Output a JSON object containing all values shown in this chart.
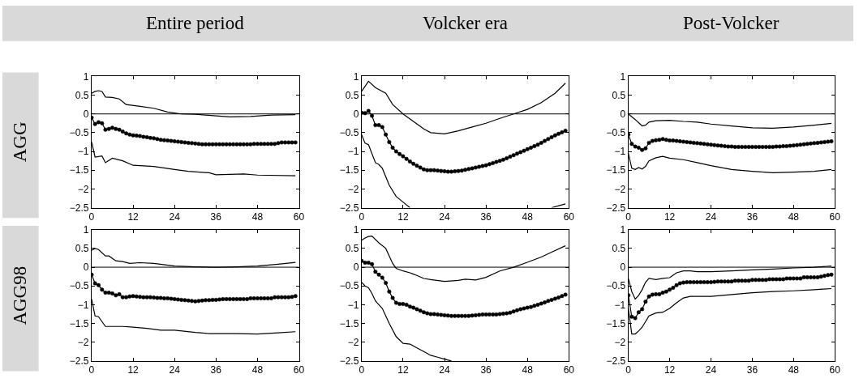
{
  "chart_data": [
    {
      "type": "line",
      "title": "Entire period",
      "ylabel": "AGG",
      "x": [
        0,
        1,
        2,
        3,
        4,
        5,
        6,
        7,
        8,
        9,
        10,
        11,
        12,
        13,
        14,
        15,
        16,
        17,
        18,
        19,
        20,
        21,
        22,
        23,
        24,
        25,
        26,
        27,
        28,
        29,
        30,
        31,
        32,
        33,
        34,
        35,
        36,
        37,
        38,
        39,
        40,
        41,
        42,
        43,
        44,
        45,
        46,
        47,
        48,
        49,
        50,
        51,
        52,
        53,
        54,
        55,
        56,
        57,
        58,
        59
      ],
      "xlim": [
        0,
        60
      ],
      "xticks": [
        0,
        12,
        24,
        36,
        48,
        60
      ],
      "ylim": [
        -2.5,
        1
      ],
      "yticks": [
        {
          "value": -2.5,
          "label": "−2.5"
        },
        {
          "value": -2,
          "label": "−2"
        },
        {
          "value": -1.5,
          "label": "−1.5"
        },
        {
          "value": -1,
          "label": "−1"
        },
        {
          "value": -0.5,
          "label": "−0.5"
        },
        0,
        0.5,
        1
      ],
      "ref_lines": [
        {
          "axis": "y",
          "value": 0,
          "color": "#000000"
        }
      ],
      "series": [
        {
          "color": "#000000",
          "marker": "circle",
          "values": [
            -0.1,
            -0.27,
            -0.22,
            -0.25,
            -0.42,
            -0.4,
            -0.37,
            -0.4,
            -0.42,
            -0.47,
            -0.52,
            -0.55,
            -0.57,
            -0.58,
            -0.59,
            -0.61,
            -0.62,
            -0.64,
            -0.65,
            -0.67,
            -0.69,
            -0.7,
            -0.71,
            -0.72,
            -0.73,
            -0.74,
            -0.75,
            -0.76,
            -0.77,
            -0.78,
            -0.79,
            -0.8,
            -0.81,
            -0.81,
            -0.81,
            -0.81,
            -0.81,
            -0.81,
            -0.81,
            -0.81,
            -0.81,
            -0.81,
            -0.81,
            -0.81,
            -0.81,
            -0.81,
            -0.81,
            -0.8,
            -0.8,
            -0.8,
            -0.8,
            -0.8,
            -0.8,
            -0.8,
            -0.78,
            -0.76,
            -0.76,
            -0.76,
            -0.76,
            -0.76
          ]
        },
        {
          "color": "#000000",
          "marker": "none",
          "x": [
            0,
            1,
            2,
            3,
            4,
            6,
            8,
            10,
            14,
            18,
            22,
            26,
            30,
            36,
            40,
            46,
            52,
            59
          ],
          "values": [
            0.55,
            0.6,
            0.62,
            0.6,
            0.45,
            0.44,
            0.4,
            0.25,
            0.2,
            0.15,
            0.05,
            0.0,
            -0.01,
            -0.05,
            -0.08,
            -0.07,
            -0.03,
            -0.02
          ]
        },
        {
          "color": "#000000",
          "marker": "none",
          "x": [
            0,
            1,
            3,
            4,
            6,
            9,
            12,
            18,
            24,
            28,
            34,
            36,
            44,
            48,
            59
          ],
          "values": [
            -0.75,
            -1.15,
            -1.12,
            -1.3,
            -1.18,
            -1.25,
            -1.37,
            -1.4,
            -1.48,
            -1.53,
            -1.57,
            -1.62,
            -1.6,
            -1.63,
            -1.65
          ]
        }
      ]
    },
    {
      "type": "line",
      "title": "Volcker era",
      "x": [
        0,
        1,
        2,
        3,
        4,
        5,
        6,
        7,
        8,
        9,
        10,
        11,
        12,
        13,
        14,
        15,
        16,
        17,
        18,
        19,
        20,
        21,
        22,
        23,
        24,
        25,
        26,
        27,
        28,
        29,
        30,
        31,
        32,
        33,
        34,
        35,
        36,
        37,
        38,
        39,
        40,
        41,
        42,
        43,
        44,
        45,
        46,
        47,
        48,
        49,
        50,
        51,
        52,
        53,
        54,
        55,
        56,
        57,
        58,
        59
      ],
      "xlim": [
        0,
        60
      ],
      "xticks": [
        0,
        12,
        24,
        36,
        48,
        60
      ],
      "ylim": [
        -2.5,
        1
      ],
      "yticks": [
        {
          "value": -2.5,
          "label": "−2.5"
        },
        {
          "value": -2,
          "label": "−2"
        },
        {
          "value": -1.5,
          "label": "−1.5"
        },
        {
          "value": -1,
          "label": "−1"
        },
        {
          "value": -0.5,
          "label": "−0.5"
        },
        0,
        0.5,
        1
      ],
      "ref_lines": [
        {
          "axis": "y",
          "value": 0,
          "color": "#000000"
        }
      ],
      "series": [
        {
          "color": "#000000",
          "marker": "circle",
          "values": [
            0.03,
            0.02,
            0.08,
            -0.05,
            -0.3,
            -0.3,
            -0.35,
            -0.55,
            -0.75,
            -0.9,
            -1.0,
            -1.07,
            -1.13,
            -1.2,
            -1.27,
            -1.33,
            -1.38,
            -1.43,
            -1.48,
            -1.5,
            -1.5,
            -1.5,
            -1.51,
            -1.52,
            -1.53,
            -1.54,
            -1.54,
            -1.53,
            -1.52,
            -1.51,
            -1.49,
            -1.47,
            -1.45,
            -1.43,
            -1.41,
            -1.39,
            -1.37,
            -1.34,
            -1.31,
            -1.28,
            -1.25,
            -1.22,
            -1.18,
            -1.14,
            -1.1,
            -1.06,
            -1.02,
            -0.98,
            -0.94,
            -0.9,
            -0.86,
            -0.82,
            -0.77,
            -0.72,
            -0.67,
            -0.62,
            -0.57,
            -0.53,
            -0.49,
            -0.45
          ]
        },
        {
          "color": "#000000",
          "marker": "none",
          "x": [
            0,
            2,
            4,
            7,
            9,
            12,
            15,
            18,
            20,
            24,
            28,
            32,
            36,
            40,
            44,
            48,
            52,
            56,
            59
          ],
          "values": [
            0.6,
            0.87,
            0.7,
            0.55,
            0.25,
            0.0,
            -0.2,
            -0.4,
            -0.5,
            -0.53,
            -0.45,
            -0.35,
            -0.25,
            -0.12,
            0.0,
            0.12,
            0.3,
            0.55,
            0.82
          ]
        },
        {
          "color": "#000000",
          "marker": "none",
          "x": [
            0,
            1,
            2,
            4,
            5,
            6,
            8,
            10,
            12,
            14,
            30,
            55,
            59
          ],
          "values": [
            -0.55,
            -0.78,
            -0.82,
            -1.3,
            -1.35,
            -1.45,
            -1.9,
            -2.2,
            -2.35,
            -2.5,
            null,
            -2.5,
            -2.4
          ]
        }
      ]
    },
    {
      "type": "line",
      "title": "Post-Volcker",
      "x": [
        0,
        1,
        2,
        3,
        4,
        5,
        6,
        7,
        8,
        9,
        10,
        11,
        12,
        13,
        14,
        15,
        16,
        17,
        18,
        19,
        20,
        21,
        22,
        23,
        24,
        25,
        26,
        27,
        28,
        29,
        30,
        31,
        32,
        33,
        34,
        35,
        36,
        37,
        38,
        39,
        40,
        41,
        42,
        43,
        44,
        45,
        46,
        47,
        48,
        49,
        50,
        51,
        52,
        53,
        54,
        55,
        56,
        57,
        58,
        59
      ],
      "xlim": [
        0,
        60
      ],
      "xticks": [
        0,
        12,
        24,
        36,
        48,
        60
      ],
      "ylim": [
        -2.5,
        1
      ],
      "yticks": [
        {
          "value": -2.5,
          "label": "−2.5"
        },
        {
          "value": -2,
          "label": "−2"
        },
        {
          "value": -1.5,
          "label": "−1.5"
        },
        {
          "value": -1,
          "label": "−1"
        },
        {
          "value": -0.5,
          "label": "−0.5"
        },
        0,
        0.5,
        1
      ],
      "ref_lines": [
        {
          "axis": "y",
          "value": 0,
          "color": "#000000"
        }
      ],
      "series": [
        {
          "color": "#000000",
          "marker": "circle",
          "values": [
            -0.55,
            -0.8,
            -0.87,
            -0.9,
            -0.96,
            -0.92,
            -0.77,
            -0.72,
            -0.7,
            -0.69,
            -0.67,
            -0.69,
            -0.71,
            -0.71,
            -0.72,
            -0.73,
            -0.74,
            -0.75,
            -0.76,
            -0.77,
            -0.78,
            -0.79,
            -0.8,
            -0.81,
            -0.82,
            -0.83,
            -0.84,
            -0.85,
            -0.86,
            -0.87,
            -0.87,
            -0.88,
            -0.88,
            -0.88,
            -0.88,
            -0.88,
            -0.88,
            -0.88,
            -0.88,
            -0.88,
            -0.88,
            -0.88,
            -0.88,
            -0.87,
            -0.87,
            -0.86,
            -0.86,
            -0.85,
            -0.84,
            -0.83,
            -0.82,
            -0.81,
            -0.8,
            -0.79,
            -0.78,
            -0.77,
            -0.76,
            -0.75,
            -0.74,
            -0.73
          ]
        },
        {
          "color": "#000000",
          "marker": "none",
          "x": [
            0,
            2,
            4,
            5,
            6,
            8,
            12,
            16,
            20,
            24,
            30,
            36,
            42,
            48,
            54,
            59
          ],
          "values": [
            0.0,
            -0.15,
            -0.32,
            -0.3,
            -0.22,
            -0.18,
            -0.17,
            -0.2,
            -0.22,
            -0.27,
            -0.32,
            -0.37,
            -0.38,
            -0.35,
            -0.3,
            -0.25
          ]
        },
        {
          "color": "#000000",
          "marker": "none",
          "x": [
            0,
            1,
            2,
            3,
            4,
            5,
            6,
            8,
            10,
            12,
            16,
            20,
            24,
            30,
            36,
            42,
            48,
            54,
            59
          ],
          "values": [
            -1.05,
            -1.45,
            -1.48,
            -1.43,
            -1.47,
            -1.4,
            -1.25,
            -1.17,
            -1.13,
            -1.18,
            -1.22,
            -1.3,
            -1.38,
            -1.48,
            -1.53,
            -1.57,
            -1.55,
            -1.53,
            -1.48
          ]
        }
      ]
    },
    {
      "type": "line",
      "ylabel": "AGG98",
      "x": [
        0,
        1,
        2,
        3,
        4,
        5,
        6,
        7,
        8,
        9,
        10,
        11,
        12,
        13,
        14,
        15,
        16,
        17,
        18,
        19,
        20,
        21,
        22,
        23,
        24,
        25,
        26,
        27,
        28,
        29,
        30,
        31,
        32,
        33,
        34,
        35,
        36,
        37,
        38,
        39,
        40,
        41,
        42,
        43,
        44,
        45,
        46,
        47,
        48,
        49,
        50,
        51,
        52,
        53,
        54,
        55,
        56,
        57,
        58,
        59
      ],
      "xlim": [
        0,
        60
      ],
      "xticks": [
        0,
        12,
        24,
        36,
        48,
        60
      ],
      "ylim": [
        -2.5,
        1
      ],
      "yticks": [
        {
          "value": -2.5,
          "label": "−2.5"
        },
        {
          "value": -2,
          "label": "−2"
        },
        {
          "value": -1.5,
          "label": "−1.5"
        },
        {
          "value": -1,
          "label": "−1"
        },
        {
          "value": -0.5,
          "label": "−0.5"
        },
        0,
        0.5,
        1
      ],
      "ref_lines": [
        {
          "axis": "y",
          "value": 0,
          "color": "#000000"
        }
      ],
      "series": [
        {
          "color": "#000000",
          "marker": "circle",
          "values": [
            -0.2,
            -0.43,
            -0.48,
            -0.6,
            -0.68,
            -0.68,
            -0.7,
            -0.75,
            -0.72,
            -0.8,
            -0.8,
            -0.78,
            -0.77,
            -0.78,
            -0.79,
            -0.8,
            -0.8,
            -0.8,
            -0.81,
            -0.82,
            -0.82,
            -0.83,
            -0.83,
            -0.84,
            -0.85,
            -0.86,
            -0.87,
            -0.88,
            -0.89,
            -0.9,
            -0.91,
            -0.9,
            -0.89,
            -0.88,
            -0.88,
            -0.87,
            -0.87,
            -0.86,
            -0.85,
            -0.85,
            -0.85,
            -0.85,
            -0.85,
            -0.85,
            -0.85,
            -0.85,
            -0.83,
            -0.83,
            -0.83,
            -0.83,
            -0.83,
            -0.83,
            -0.83,
            -0.8,
            -0.8,
            -0.8,
            -0.8,
            -0.8,
            -0.79,
            -0.77
          ]
        },
        {
          "color": "#000000",
          "marker": "none",
          "x": [
            0,
            1,
            2,
            4,
            5,
            7,
            9,
            11,
            14,
            18,
            24,
            30,
            36,
            42,
            48,
            54,
            59
          ],
          "values": [
            0.45,
            0.5,
            0.47,
            0.3,
            0.3,
            0.17,
            0.15,
            0.1,
            0.12,
            0.1,
            0.03,
            0.01,
            0.0,
            0.01,
            0.03,
            0.08,
            0.13
          ]
        },
        {
          "color": "#000000",
          "marker": "none",
          "x": [
            0,
            1,
            2,
            4,
            6,
            9,
            12,
            16,
            20,
            24,
            30,
            34,
            42,
            48,
            54,
            59
          ],
          "values": [
            -0.85,
            -1.3,
            -1.32,
            -1.58,
            -1.58,
            -1.58,
            -1.6,
            -1.63,
            -1.68,
            -1.68,
            -1.74,
            -1.77,
            -1.77,
            -1.78,
            -1.75,
            -1.72
          ]
        }
      ]
    },
    {
      "type": "line",
      "x": [
        0,
        1,
        2,
        3,
        4,
        5,
        6,
        7,
        8,
        9,
        10,
        11,
        12,
        13,
        14,
        15,
        16,
        17,
        18,
        19,
        20,
        21,
        22,
        23,
        24,
        25,
        26,
        27,
        28,
        29,
        30,
        31,
        32,
        33,
        34,
        35,
        36,
        37,
        38,
        39,
        40,
        41,
        42,
        43,
        44,
        45,
        46,
        47,
        48,
        49,
        50,
        51,
        52,
        53,
        54,
        55,
        56,
        57,
        58,
        59
      ],
      "xlim": [
        0,
        60
      ],
      "xticks": [
        0,
        12,
        24,
        36,
        48,
        60
      ],
      "ylim": [
        -2.5,
        1
      ],
      "yticks": [
        {
          "value": -2.5,
          "label": "−2.5"
        },
        {
          "value": -2,
          "label": "−2"
        },
        {
          "value": -1.5,
          "label": "−1.5"
        },
        {
          "value": -1,
          "label": "−1"
        },
        {
          "value": -0.5,
          "label": "−0.5"
        },
        0,
        0.5,
        1
      ],
      "ref_lines": [
        {
          "axis": "y",
          "value": 0,
          "color": "#000000"
        }
      ],
      "series": [
        {
          "color": "#000000",
          "marker": "circle",
          "values": [
            0.17,
            0.12,
            0.12,
            0.08,
            -0.12,
            -0.2,
            -0.28,
            -0.42,
            -0.65,
            -0.82,
            -0.95,
            -0.98,
            -0.98,
            -1.0,
            -1.05,
            -1.08,
            -1.12,
            -1.16,
            -1.2,
            -1.23,
            -1.25,
            -1.25,
            -1.26,
            -1.27,
            -1.28,
            -1.29,
            -1.3,
            -1.3,
            -1.3,
            -1.3,
            -1.3,
            -1.3,
            -1.29,
            -1.28,
            -1.27,
            -1.26,
            -1.26,
            -1.26,
            -1.26,
            -1.26,
            -1.25,
            -1.24,
            -1.23,
            -1.21,
            -1.18,
            -1.15,
            -1.12,
            -1.1,
            -1.08,
            -1.06,
            -1.03,
            -1.0,
            -0.97,
            -0.94,
            -0.9,
            -0.87,
            -0.84,
            -0.81,
            -0.77,
            -0.73
          ]
        },
        {
          "color": "#000000",
          "marker": "none",
          "x": [
            0,
            1,
            2,
            3,
            5,
            7,
            8,
            9,
            10,
            12,
            14,
            16,
            18,
            20,
            24,
            28,
            30,
            33,
            36,
            40,
            44,
            48,
            52,
            55,
            59
          ],
          "values": [
            0.72,
            0.78,
            0.82,
            0.83,
            0.65,
            0.5,
            0.3,
            0.1,
            -0.03,
            -0.1,
            -0.15,
            -0.22,
            -0.3,
            -0.33,
            -0.38,
            -0.35,
            -0.32,
            -0.34,
            -0.27,
            -0.1,
            0.0,
            0.13,
            0.27,
            0.4,
            0.57
          ]
        },
        {
          "color": "#000000",
          "marker": "none",
          "x": [
            0,
            1,
            2,
            3,
            4,
            5,
            6,
            8,
            10,
            12,
            14,
            16,
            18,
            20,
            22,
            24,
            26
          ],
          "values": [
            -0.4,
            -0.5,
            -0.55,
            -0.7,
            -0.9,
            -1.0,
            -1.1,
            -1.5,
            -1.85,
            -2.03,
            -2.05,
            -2.15,
            -2.25,
            -2.35,
            -2.4,
            -2.45,
            -2.5
          ]
        }
      ]
    },
    {
      "type": "line",
      "x": [
        0,
        1,
        2,
        3,
        4,
        5,
        6,
        7,
        8,
        9,
        10,
        11,
        12,
        13,
        14,
        15,
        16,
        17,
        18,
        19,
        20,
        21,
        22,
        23,
        24,
        25,
        26,
        27,
        28,
        29,
        30,
        31,
        32,
        33,
        34,
        35,
        36,
        37,
        38,
        39,
        40,
        41,
        42,
        43,
        44,
        45,
        46,
        47,
        48,
        49,
        50,
        51,
        52,
        53,
        54,
        55,
        56,
        57,
        58,
        59
      ],
      "xlim": [
        0,
        60
      ],
      "xticks": [
        0,
        12,
        24,
        36,
        48,
        60
      ],
      "ylim": [
        -2.5,
        1
      ],
      "yticks": [
        {
          "value": -2.5,
          "label": "−2.5"
        },
        {
          "value": -2,
          "label": "−2"
        },
        {
          "value": -1.5,
          "label": "−1.5"
        },
        {
          "value": -1,
          "label": "−1"
        },
        {
          "value": -0.5,
          "label": "−0.5"
        },
        0,
        0.5,
        1
      ],
      "ref_lines": [
        {
          "axis": "y",
          "value": 0,
          "color": "#000000"
        }
      ],
      "series": [
        {
          "color": "#000000",
          "marker": "circle",
          "values": [
            -0.75,
            -1.32,
            -1.36,
            -1.2,
            -1.12,
            -0.92,
            -0.78,
            -0.73,
            -0.72,
            -0.72,
            -0.68,
            -0.65,
            -0.6,
            -0.55,
            -0.48,
            -0.43,
            -0.41,
            -0.4,
            -0.4,
            -0.4,
            -0.4,
            -0.4,
            -0.4,
            -0.4,
            -0.4,
            -0.39,
            -0.38,
            -0.38,
            -0.38,
            -0.38,
            -0.38,
            -0.36,
            -0.36,
            -0.36,
            -0.36,
            -0.36,
            -0.34,
            -0.34,
            -0.34,
            -0.34,
            -0.34,
            -0.32,
            -0.32,
            -0.32,
            -0.32,
            -0.32,
            -0.3,
            -0.3,
            -0.3,
            -0.3,
            -0.3,
            -0.27,
            -0.27,
            -0.27,
            -0.27,
            -0.27,
            -0.25,
            -0.23,
            -0.21,
            -0.2
          ]
        },
        {
          "color": "#000000",
          "marker": "none",
          "x": [
            0,
            1,
            2,
            3,
            4,
            5,
            6,
            8,
            10,
            12,
            14,
            16,
            18,
            20,
            24,
            30,
            36,
            42,
            48,
            54,
            59
          ],
          "values": [
            -0.3,
            -0.65,
            -0.85,
            -0.75,
            -0.6,
            -0.4,
            -0.3,
            -0.33,
            -0.3,
            -0.28,
            -0.15,
            -0.1,
            -0.1,
            -0.12,
            -0.12,
            -0.1,
            -0.07,
            -0.05,
            -0.02,
            0.0,
            0.03
          ]
        },
        {
          "color": "#000000",
          "marker": "none",
          "x": [
            0,
            1,
            2,
            3,
            4,
            5,
            6,
            8,
            10,
            12,
            14,
            16,
            18,
            24,
            30,
            36,
            42,
            48,
            54,
            59
          ],
          "values": [
            -1.1,
            -1.78,
            -1.78,
            -1.7,
            -1.6,
            -1.45,
            -1.3,
            -1.22,
            -1.2,
            -1.1,
            -0.95,
            -0.82,
            -0.78,
            -0.78,
            -0.73,
            -0.68,
            -0.65,
            -0.63,
            -0.6,
            -0.57
          ]
        }
      ]
    }
  ]
}
